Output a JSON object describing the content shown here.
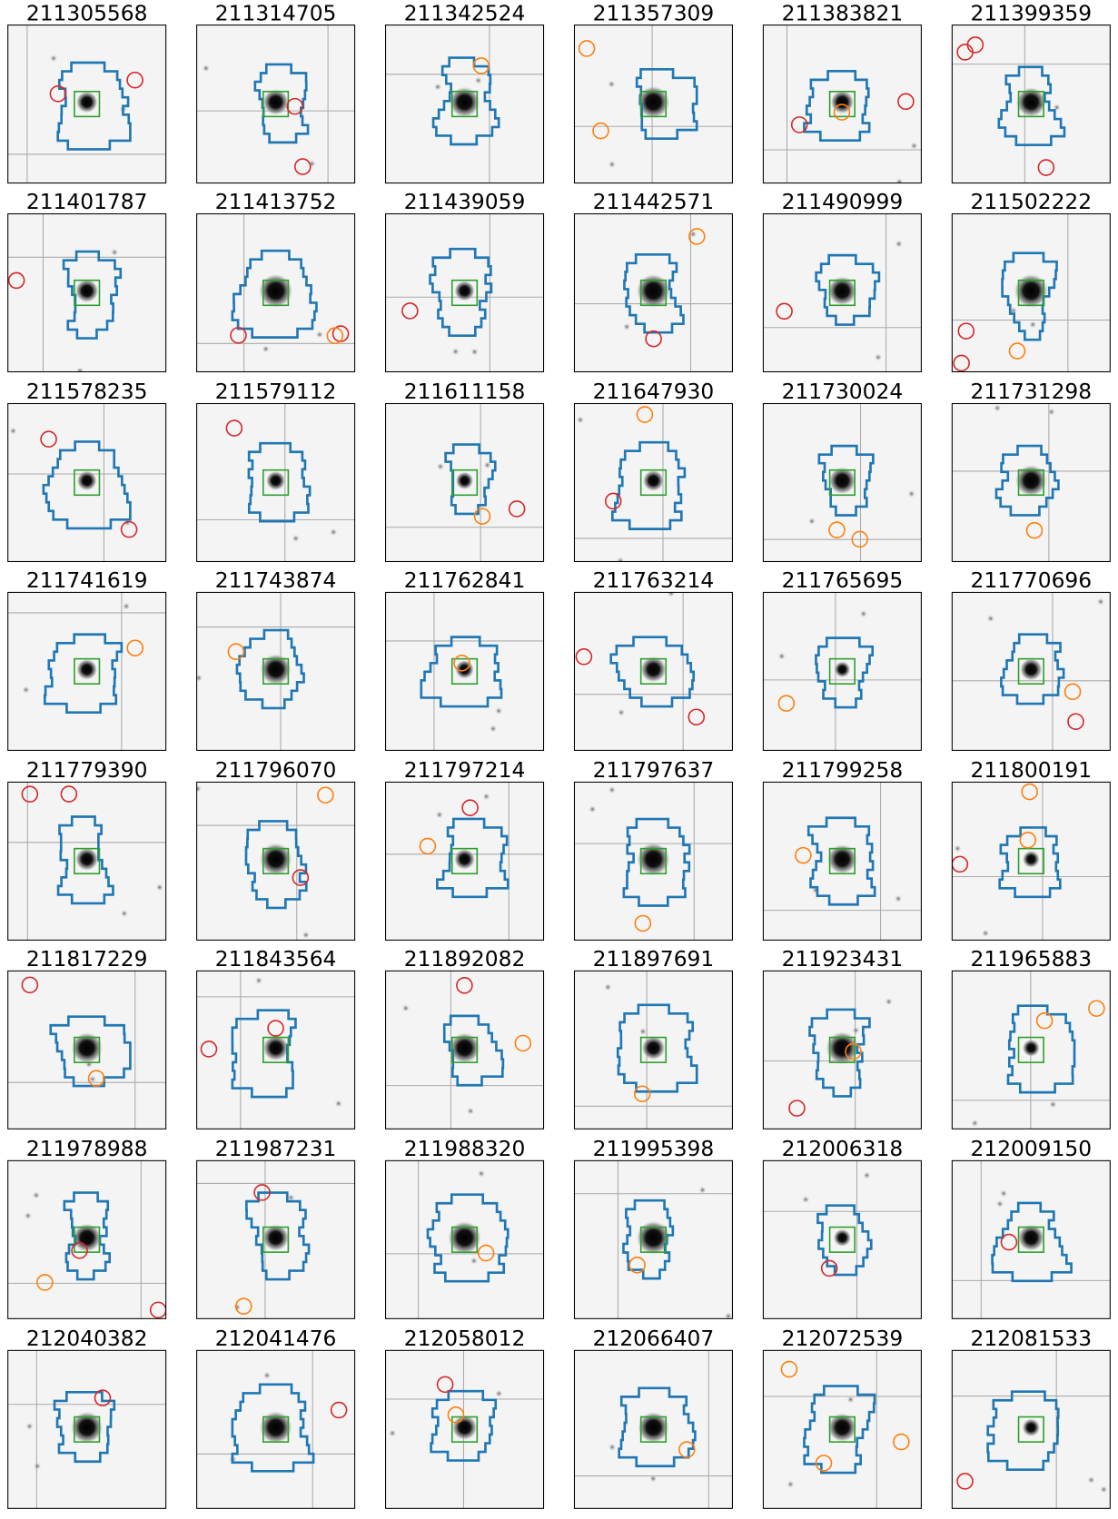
{
  "panels": [
    "211305568",
    "211314705",
    "211342524",
    "211357309",
    "211383821",
    "211399359",
    "211401787",
    "211413752",
    "211439059",
    "211442571",
    "211490999",
    "211502222",
    "211578235",
    "211579112",
    "211611158",
    "211647930",
    "211730024",
    "211731298",
    "211741619",
    "211743874",
    "211762841",
    "211763214",
    "211765695",
    "211770696",
    "211779390",
    "211796070",
    "211797214",
    "211797637",
    "211799258",
    "211800191",
    "211817229",
    "211843564",
    "211892082",
    "211897691",
    "211923431",
    "211965883",
    "211978988",
    "211987231",
    "211988320",
    "211995398",
    "212006318",
    "212009150",
    "212040382",
    "212041476",
    "212058012",
    "212066407",
    "212072539",
    "212081533"
  ]
}
